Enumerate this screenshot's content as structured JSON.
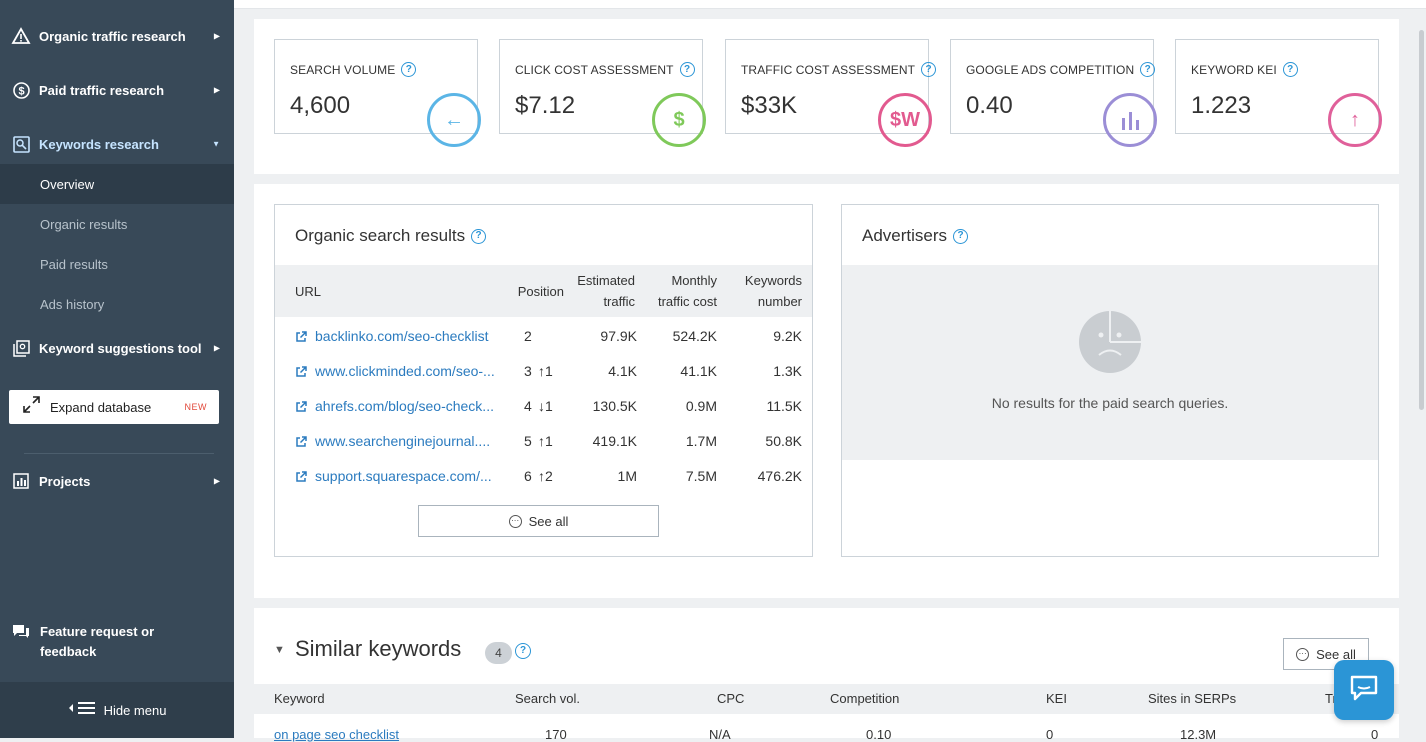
{
  "sidebar": {
    "organic": "Organic traffic research",
    "paid": "Paid traffic research",
    "keywords": "Keywords research",
    "sub": [
      "Overview",
      "Organic results",
      "Paid results",
      "Ads history"
    ],
    "suggestions": "Keyword suggestions tool",
    "expand": "Expand database",
    "expand_badge": "NEW",
    "projects": "Projects",
    "feature": "Feature request or feedback",
    "hide": "Hide menu"
  },
  "stats": [
    {
      "title": "SEARCH VOLUME",
      "value": "4,600",
      "color": "#5bb5e6"
    },
    {
      "title": "CLICK COST ASSESSMENT",
      "value": "$7.12",
      "color": "#7fc95a"
    },
    {
      "title": "TRAFFIC COST ASSESSMENT",
      "value": "$33K",
      "color": "#e25a8f"
    },
    {
      "title": "GOOGLE ADS COMPETITION",
      "value": "0.40",
      "color": "#9b8ed6"
    },
    {
      "title": "KEYWORD KEI",
      "value": "1.223",
      "color": "#e0609a"
    }
  ],
  "organic": {
    "title": "Organic search results",
    "headers": {
      "url": "URL",
      "position": "Position",
      "traffic": "Estimated traffic",
      "cost": "Monthly traffic cost",
      "keywords": "Keywords number"
    },
    "rows": [
      {
        "url": "backlinko.com/seo-checklist",
        "pos": "2",
        "delta": "",
        "dir": "",
        "traffic": "97.9K",
        "cost": "524.2K",
        "kw": "9.2K"
      },
      {
        "url": "www.clickminded.com/seo-...",
        "pos": "3",
        "delta": "1",
        "dir": "up",
        "traffic": "4.1K",
        "cost": "41.1K",
        "kw": "1.3K"
      },
      {
        "url": "ahrefs.com/blog/seo-check...",
        "pos": "4",
        "delta": "1",
        "dir": "down",
        "traffic": "130.5K",
        "cost": "0.9M",
        "kw": "11.5K"
      },
      {
        "url": "www.searchenginejournal....",
        "pos": "5",
        "delta": "1",
        "dir": "up",
        "traffic": "419.1K",
        "cost": "1.7M",
        "kw": "50.8K"
      },
      {
        "url": "support.squarespace.com/...",
        "pos": "6",
        "delta": "2",
        "dir": "up",
        "traffic": "1M",
        "cost": "7.5M",
        "kw": "476.2K"
      }
    ],
    "see_all": "See all"
  },
  "advertisers": {
    "title": "Advertisers",
    "empty": "No results for the paid search queries."
  },
  "similar": {
    "title": "Similar keywords",
    "count": "4",
    "see_all": "See all",
    "headers": [
      "Keyword",
      "Search vol.",
      "CPC",
      "Competition",
      "KEI",
      "Sites in SERPs",
      "Tr"
    ],
    "row": [
      "on page seo checklist",
      "170",
      "N/A",
      "0.10",
      "0",
      "12.3M",
      "0"
    ]
  }
}
